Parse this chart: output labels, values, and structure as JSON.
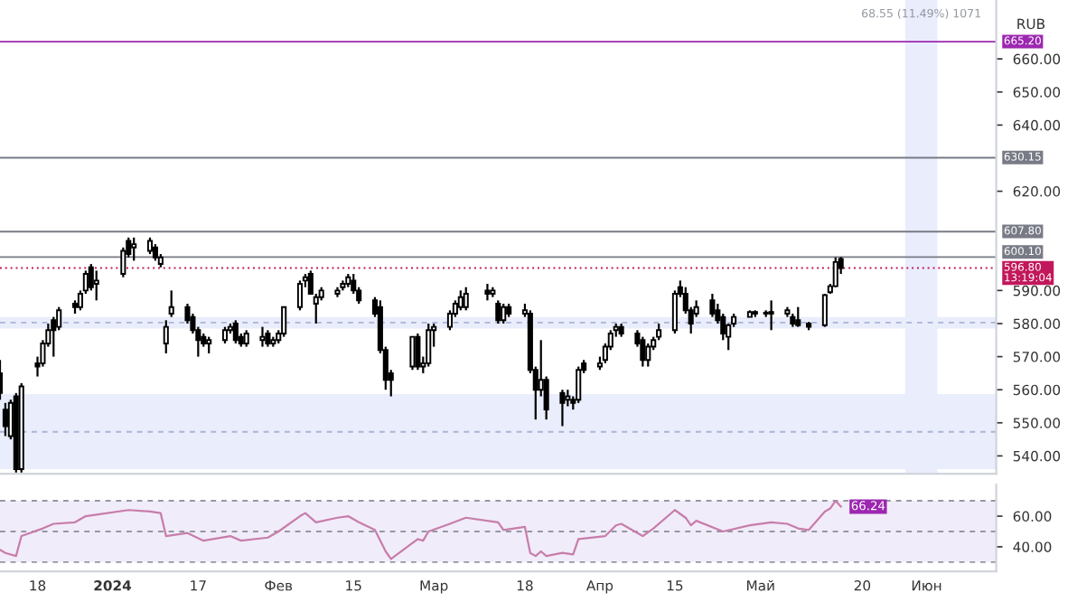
{
  "chart_data": [
    {
      "type": "candlestick",
      "ylabel": "RUB",
      "tick_labels": "y",
      "grid": false,
      "legend": false,
      "x": [
        "2023-12-11",
        "2023-12-12",
        "2023-12-13",
        "2023-12-14",
        "2023-12-15",
        "2023-12-18",
        "2023-12-19",
        "2023-12-20",
        "2023-12-21",
        "2023-12-22",
        "2023-12-25",
        "2023-12-26",
        "2023-12-27",
        "2023-12-28",
        "2023-12-29",
        "2024-01-03",
        "2024-01-04",
        "2024-01-05",
        "2024-01-08",
        "2024-01-09",
        "2024-01-10",
        "2024-01-11",
        "2024-01-12",
        "2024-01-15",
        "2024-01-16",
        "2024-01-17",
        "2024-01-18",
        "2024-01-19",
        "2024-01-22",
        "2024-01-23",
        "2024-01-24",
        "2024-01-25",
        "2024-01-26",
        "2024-01-29",
        "2024-01-30",
        "2024-01-31",
        "2024-02-01",
        "2024-02-02",
        "2024-02-05",
        "2024-02-06",
        "2024-02-07",
        "2024-02-08",
        "2024-02-09",
        "2024-02-12",
        "2024-02-13",
        "2024-02-14",
        "2024-02-15",
        "2024-02-16",
        "2024-02-19",
        "2024-02-20",
        "2024-02-21",
        "2024-02-22",
        "2024-02-26",
        "2024-02-27",
        "2024-02-28",
        "2024-02-29",
        "2024-03-01",
        "2024-03-04",
        "2024-03-05",
        "2024-03-06",
        "2024-03-07",
        "2024-03-11",
        "2024-03-12",
        "2024-03-13",
        "2024-03-14",
        "2024-03-15",
        "2024-03-18",
        "2024-03-19",
        "2024-03-20",
        "2024-03-21",
        "2024-03-22",
        "2024-03-25",
        "2024-03-26",
        "2024-03-27",
        "2024-03-28",
        "2024-03-29",
        "2024-04-01",
        "2024-04-02",
        "2024-04-03",
        "2024-04-04",
        "2024-04-05",
        "2024-04-08",
        "2024-04-09",
        "2024-04-10",
        "2024-04-11",
        "2024-04-12",
        "2024-04-15",
        "2024-04-16",
        "2024-04-17",
        "2024-04-18",
        "2024-04-19",
        "2024-04-22",
        "2024-04-23",
        "2024-04-24",
        "2024-04-25",
        "2024-04-26",
        "2024-04-29",
        "2024-04-30",
        "2024-05-02",
        "2024-05-03",
        "2024-05-06",
        "2024-05-07",
        "2024-05-08",
        "2024-05-10",
        "2024-05-13",
        "2024-05-14",
        "2024-05-15",
        "2024-05-16"
      ],
      "ohlc": [
        [
          565,
          569,
          557,
          559
        ],
        [
          554,
          556,
          546,
          549
        ],
        [
          546,
          557,
          545,
          556
        ],
        [
          558,
          559,
          535,
          536
        ],
        [
          536,
          562,
          535,
          561
        ],
        [
          568,
          570,
          564,
          567
        ],
        [
          568,
          575,
          567,
          574
        ],
        [
          574,
          580,
          573,
          578
        ],
        [
          581,
          582,
          570,
          578
        ],
        [
          579,
          585,
          578,
          584
        ],
        [
          586,
          587,
          583,
          585
        ],
        [
          585,
          590,
          584,
          589
        ],
        [
          590,
          596,
          589,
          595
        ],
        [
          597,
          598,
          590,
          591
        ],
        [
          592,
          596,
          587,
          593
        ],
        [
          595,
          603,
          594,
          602
        ],
        [
          605,
          606,
          600,
          601
        ],
        [
          603,
          606,
          599,
          604
        ],
        [
          602,
          606,
          601,
          605
        ],
        [
          603,
          604,
          599,
          600
        ],
        [
          598,
          601,
          597,
          600
        ],
        [
          574,
          581,
          571,
          579
        ],
        [
          583,
          590,
          582,
          585
        ],
        [
          585,
          586,
          580,
          581
        ],
        [
          582,
          583,
          577,
          578
        ],
        [
          578,
          579,
          570,
          575
        ],
        [
          576,
          577,
          573,
          574
        ],
        [
          574,
          576,
          571,
          575
        ],
        [
          575,
          579,
          574,
          578
        ],
        [
          578,
          580,
          577,
          579
        ],
        [
          580,
          581,
          574,
          575
        ],
        [
          576,
          577,
          573,
          574
        ],
        [
          574,
          578,
          573,
          577
        ],
        [
          575,
          579,
          573,
          576
        ],
        [
          577,
          578,
          573,
          574
        ],
        [
          574,
          576,
          573,
          575
        ],
        [
          575,
          578,
          574,
          577
        ],
        [
          577,
          585,
          576,
          585
        ],
        [
          585,
          593,
          584,
          592
        ],
        [
          593,
          595,
          591,
          594
        ],
        [
          595,
          596,
          589,
          589
        ],
        [
          586,
          589,
          580,
          588
        ],
        [
          588,
          591,
          587,
          590
        ],
        [
          589,
          591,
          588,
          590
        ],
        [
          591,
          593,
          590,
          592
        ],
        [
          592,
          595,
          591,
          594
        ],
        [
          593,
          595,
          589,
          590
        ],
        [
          590,
          591,
          586,
          587
        ],
        [
          587,
          588,
          582,
          583
        ],
        [
          585,
          587,
          571,
          572
        ],
        [
          572,
          573,
          560,
          563
        ],
        [
          565,
          566,
          558,
          563
        ],
        [
          567,
          576,
          566,
          576
        ],
        [
          576,
          577,
          566,
          567
        ],
        [
          567,
          570,
          565,
          568
        ],
        [
          568,
          580,
          567,
          578
        ],
        [
          578,
          580,
          573,
          579
        ],
        [
          579,
          584,
          578,
          583
        ],
        [
          583,
          587,
          582,
          586
        ],
        [
          585,
          590,
          584,
          588
        ],
        [
          585,
          591,
          584,
          589
        ],
        [
          590,
          592,
          587,
          589
        ],
        [
          589,
          591,
          588,
          590
        ],
        [
          586,
          587,
          580,
          581
        ],
        [
          581,
          586,
          580,
          585
        ],
        [
          585,
          586,
          582,
          583
        ],
        [
          583,
          586,
          582,
          584
        ],
        [
          583,
          584,
          565,
          566
        ],
        [
          566,
          567,
          551,
          560
        ],
        [
          560,
          575,
          558,
          563
        ],
        [
          563,
          564,
          551,
          554
        ],
        [
          559,
          560,
          549,
          556
        ],
        [
          557,
          560,
          555,
          558
        ],
        [
          557,
          558,
          554,
          556
        ],
        [
          557,
          567,
          556,
          566
        ],
        [
          568,
          569,
          565,
          566
        ],
        [
          567,
          570,
          566,
          568
        ],
        [
          569,
          574,
          568,
          573
        ],
        [
          573,
          578,
          572,
          577
        ],
        [
          578,
          580,
          576,
          579
        ],
        [
          579,
          580,
          576,
          577
        ],
        [
          577,
          578,
          573,
          574
        ],
        [
          575,
          576,
          567,
          569
        ],
        [
          569,
          574,
          567,
          573
        ],
        [
          573,
          576,
          572,
          575
        ],
        [
          576,
          580,
          575,
          578
        ],
        [
          578,
          590,
          577,
          589
        ],
        [
          591,
          593,
          588,
          589
        ],
        [
          589,
          591,
          583,
          584
        ],
        [
          584,
          585,
          577,
          580
        ],
        [
          583,
          587,
          582,
          585
        ],
        [
          587,
          589,
          582,
          583
        ],
        [
          584,
          586,
          580,
          581
        ],
        [
          582,
          583,
          575,
          577
        ],
        [
          576,
          580,
          572,
          579.5
        ],
        [
          580,
          583,
          579,
          582
        ],
        [
          582,
          584,
          582,
          583.5
        ],
        [
          583,
          584,
          582,
          583.5
        ],
        [
          583,
          584,
          582,
          583
        ],
        [
          583,
          587,
          578,
          583.5
        ],
        [
          583,
          585,
          582,
          584
        ],
        [
          582,
          583,
          579,
          580
        ],
        [
          581,
          585,
          579,
          579.5
        ],
        [
          580,
          580.5,
          578,
          579
        ],
        [
          579.5,
          589,
          579,
          588.6
        ],
        [
          589.5,
          592,
          589,
          591.3
        ],
        [
          591.3,
          600,
          591,
          598.6
        ],
        [
          599.5,
          600.1,
          595,
          596.8
        ]
      ],
      "xlim": [
        "2023-12-11",
        "2024-06-14"
      ],
      "ylim": [
        534.6,
        677.8
      ],
      "yticks": [
        {
          "value": 540,
          "label": "540.00"
        },
        {
          "value": 550,
          "label": "550.00"
        },
        {
          "value": 560,
          "label": "560.00"
        },
        {
          "value": 570,
          "label": "570.00"
        },
        {
          "value": 580,
          "label": "580.00"
        },
        {
          "value": 590,
          "label": "590.00"
        },
        {
          "value": 620,
          "label": "620.00"
        },
        {
          "value": 640,
          "label": "640.00"
        },
        {
          "value": 650,
          "label": "650.00"
        },
        {
          "value": 660,
          "label": "660.00"
        }
      ],
      "bands": [
        {
          "axis": "y",
          "from": 536,
          "to": 558.7,
          "color": "#e9edfc"
        },
        {
          "axis": "y",
          "from": 578.5,
          "to": 582,
          "color": "#e9edfc"
        },
        {
          "axis": "x",
          "from": "2024-05-28",
          "to": "2024-06-03",
          "color": "#e9edfc"
        }
      ],
      "ref_lines": [
        {
          "axis": "y",
          "value": 665.2,
          "label": "665.20",
          "color": "#9c27b0",
          "line_style": "solid"
        },
        {
          "axis": "y",
          "value": 630.15,
          "label": "630.15",
          "color": "#787b86",
          "line_style": "solid"
        },
        {
          "axis": "y",
          "value": 607.8,
          "label": "607.80",
          "color": "#787b86",
          "line_style": "solid"
        },
        {
          "axis": "y",
          "value": 600.1,
          "label": "600.10",
          "color": "#787b86",
          "line_style": "solid"
        },
        {
          "axis": "y",
          "value": 596.8,
          "label": "596.80\n13:19:04",
          "color": "#c2185b",
          "line_style": "dotted"
        },
        {
          "axis": "y",
          "value": 547.3,
          "color": "#aab4d4",
          "line_style": "dashed"
        },
        {
          "axis": "y",
          "value": 580.3,
          "color": "#aab4d4",
          "line_style": "dashed"
        }
      ],
      "annotations": [
        "68.55 (11.49%) 1071"
      ]
    },
    {
      "type": "line",
      "grid": false,
      "legend": false,
      "series": [
        {
          "color": "#c77dab",
          "x": [
            "2023-12-11",
            "2023-12-12",
            "2023-12-14",
            "2023-12-15",
            "2023-12-19",
            "2023-12-21",
            "2023-12-25",
            "2023-12-27",
            "2023-12-29",
            "2024-01-04",
            "2024-01-08",
            "2024-01-10",
            "2024-01-11",
            "2024-01-15",
            "2024-01-18",
            "2024-01-23",
            "2024-01-25",
            "2024-01-30",
            "2024-02-01",
            "2024-02-05",
            "2024-02-06",
            "2024-02-08",
            "2024-02-12",
            "2024-02-14",
            "2024-02-16",
            "2024-02-19",
            "2024-02-21",
            "2024-02-22",
            "2024-02-27",
            "2024-02-28",
            "2024-02-29",
            "2024-03-04",
            "2024-03-07",
            "2024-03-13",
            "2024-03-14",
            "2024-03-18",
            "2024-03-19",
            "2024-03-20",
            "2024-03-21",
            "2024-03-22",
            "2024-03-25",
            "2024-03-27",
            "2024-03-28",
            "2024-04-02",
            "2024-04-04",
            "2024-04-05",
            "2024-04-09",
            "2024-04-11",
            "2024-04-15",
            "2024-04-17",
            "2024-04-18",
            "2024-04-19",
            "2024-04-24",
            "2024-04-29",
            "2024-05-03",
            "2024-05-06",
            "2024-05-08",
            "2024-05-10",
            "2024-05-13",
            "2024-05-14",
            "2024-05-15",
            "2024-05-16"
          ],
          "values": [
            38,
            36,
            34,
            47,
            52,
            55,
            56,
            60,
            61,
            64,
            63,
            62,
            47,
            49,
            44,
            47,
            44,
            46,
            50,
            60,
            62,
            56,
            59,
            60,
            56,
            51,
            37,
            32,
            45,
            44,
            50,
            55,
            59,
            56,
            51,
            53,
            36,
            34,
            37,
            34,
            36,
            35,
            45,
            47,
            54,
            55,
            47,
            52,
            64,
            59,
            54,
            57,
            50,
            54,
            56,
            55,
            52,
            51,
            63,
            65,
            70,
            66.24
          ],
          "value_labels": [
            null,
            null,
            null,
            null,
            null,
            null,
            null,
            null,
            null,
            null,
            null,
            null,
            null,
            null,
            null,
            null,
            null,
            null,
            null,
            null,
            null,
            null,
            null,
            null,
            null,
            null,
            null,
            null,
            null,
            null,
            null,
            null,
            null,
            null,
            null,
            null,
            null,
            null,
            null,
            null,
            null,
            null,
            null,
            null,
            null,
            null,
            null,
            null,
            null,
            null,
            null,
            null,
            null,
            null,
            null,
            null,
            null,
            null,
            null,
            null,
            null,
            "66.24"
          ]
        }
      ],
      "xlim": [
        "2023-12-11",
        "2024-06-14"
      ],
      "xticks": [
        {
          "value": "2023-12-18",
          "label": "18"
        },
        {
          "value": "2024-01-01",
          "label": "2024"
        },
        {
          "value": "2024-01-17",
          "label": "17"
        },
        {
          "value": "2024-02-01",
          "label": "Фев"
        },
        {
          "value": "2024-02-15",
          "label": "15"
        },
        {
          "value": "2024-03-01",
          "label": "Мар"
        },
        {
          "value": "2024-03-18",
          "label": "18"
        },
        {
          "value": "2024-04-01",
          "label": "Апр"
        },
        {
          "value": "2024-04-15",
          "label": "15"
        },
        {
          "value": "2024-05-01",
          "label": "Май"
        },
        {
          "value": "2024-05-20",
          "label": "20"
        },
        {
          "value": "2024-06-01",
          "label": "Июн"
        }
      ],
      "ylim": [
        24,
        80.6
      ],
      "yticks": [
        {
          "value": 40,
          "label": "40.00"
        },
        {
          "value": 60,
          "label": "60.00"
        }
      ],
      "bands": [
        {
          "axis": "y",
          "from": 30,
          "to": 70,
          "color": "#f1ecfa"
        }
      ],
      "ref_lines": [
        {
          "axis": "y",
          "value": 70,
          "color": "#9598a1",
          "line_style": "dashed"
        },
        {
          "axis": "y",
          "value": 50,
          "color": "#9598a1",
          "line_style": "dashed"
        },
        {
          "axis": "y",
          "value": 30,
          "color": "#9598a1",
          "line_style": "dashed"
        }
      ]
    }
  ]
}
